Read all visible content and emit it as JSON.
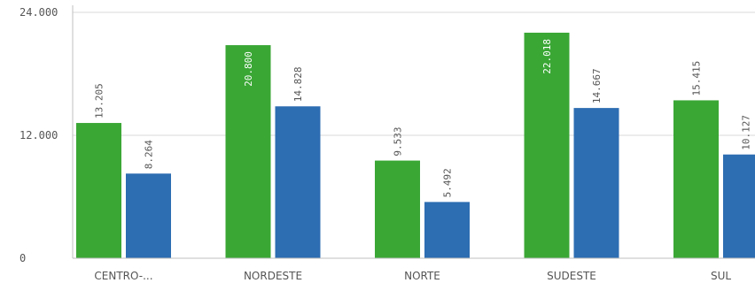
{
  "chart_data": {
    "type": "bar",
    "categories": [
      "CENTRO-...",
      "NORDESTE",
      "NORTE",
      "SUDESTE",
      "SUL"
    ],
    "series": [
      {
        "values": [
          13205,
          20800,
          9533,
          22018,
          15415
        ],
        "labels": [
          "13.205",
          "20.800",
          "9.533",
          "22.018",
          "15.415"
        ],
        "color": "#3aa735"
      },
      {
        "values": [
          8264,
          14828,
          5492,
          14667,
          10127
        ],
        "labels": [
          "8.264",
          "14.828",
          "5.492",
          "14.667",
          "10.127"
        ],
        "color": "#2d6db2"
      }
    ],
    "yticks": [
      {
        "value": 0,
        "label": "0"
      },
      {
        "value": 12000,
        "label": "12.000"
      },
      {
        "value": 24000,
        "label": "24.000"
      }
    ],
    "ylim": [
      0,
      24000
    ],
    "grid": true,
    "legend": "none",
    "label_colors": {
      "inside": "#ffffff",
      "outside": "#555555"
    }
  }
}
